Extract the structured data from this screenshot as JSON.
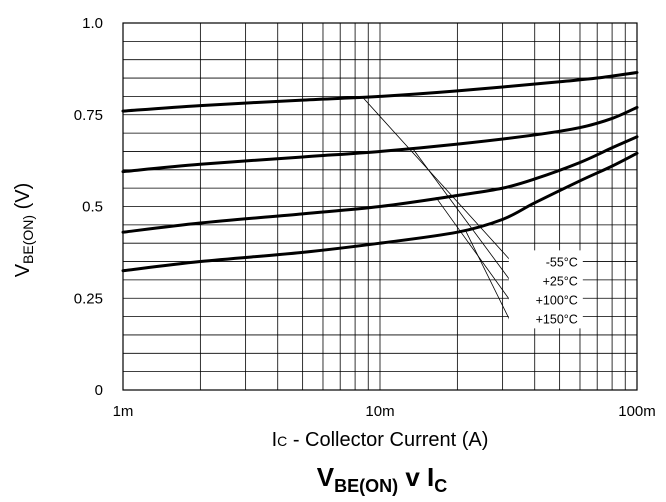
{
  "chart_data": {
    "type": "line",
    "title": {
      "main": "V",
      "sub1": "BE(ON)",
      "mid": " v I",
      "sub2": "C"
    },
    "xlabel": {
      "prefix": "I",
      "prefix_small": "C",
      "rest": " - Collector Current (A)"
    },
    "ylabel": {
      "main": "V",
      "sub": "BE(ON)",
      "suffix": " (V)"
    },
    "x_scale": "log",
    "xlim": [
      0.001,
      0.1
    ],
    "ylim": [
      0,
      1.0
    ],
    "grid": true,
    "x_ticks": [
      {
        "value": 0.001,
        "label": "1m"
      },
      {
        "value": 0.01,
        "label": "10m"
      },
      {
        "value": 0.1,
        "label": "100m"
      }
    ],
    "y_ticks": [
      {
        "value": 0,
        "label": "0"
      },
      {
        "value": 0.25,
        "label": "0.25"
      },
      {
        "value": 0.5,
        "label": "0.5"
      },
      {
        "value": 0.75,
        "label": "0.75"
      },
      {
        "value": 1.0,
        "label": "1.0"
      }
    ],
    "legend_placement": "center-right",
    "series": [
      {
        "name": "-55°C",
        "x": [
          0.001,
          0.002,
          0.005,
          0.01,
          0.02,
          0.05,
          0.07,
          0.1
        ],
        "y": [
          0.76,
          0.775,
          0.79,
          0.8,
          0.815,
          0.84,
          0.85,
          0.865
        ]
      },
      {
        "name": "+25°C",
        "x": [
          0.001,
          0.002,
          0.005,
          0.01,
          0.02,
          0.04,
          0.06,
          0.08,
          0.1
        ],
        "y": [
          0.595,
          0.615,
          0.635,
          0.65,
          0.67,
          0.695,
          0.715,
          0.74,
          0.77
        ]
      },
      {
        "name": "+100°C",
        "x": [
          0.001,
          0.002,
          0.005,
          0.01,
          0.02,
          0.03,
          0.04,
          0.06,
          0.08,
          0.1
        ],
        "y": [
          0.43,
          0.455,
          0.48,
          0.5,
          0.53,
          0.55,
          0.575,
          0.62,
          0.66,
          0.69
        ]
      },
      {
        "name": "+150°C",
        "x": [
          0.001,
          0.002,
          0.005,
          0.01,
          0.02,
          0.03,
          0.04,
          0.06,
          0.08,
          0.1
        ],
        "y": [
          0.325,
          0.35,
          0.375,
          0.4,
          0.43,
          0.465,
          0.51,
          0.57,
          0.61,
          0.645
        ]
      }
    ],
    "legend_leaders": [
      {
        "series": "-55°C",
        "from": [
          0.0085,
          0.8
        ],
        "to": [
          0.032,
          0.355
        ]
      },
      {
        "series": "+25°C",
        "from": [
          0.0135,
          0.655
        ],
        "to": [
          0.032,
          0.3
        ]
      },
      {
        "series": "+100°C",
        "from": [
          0.0165,
          0.525
        ],
        "to": [
          0.032,
          0.245
        ]
      },
      {
        "series": "+150°C",
        "from": [
          0.0215,
          0.435
        ],
        "to": [
          0.032,
          0.19
        ]
      }
    ]
  }
}
